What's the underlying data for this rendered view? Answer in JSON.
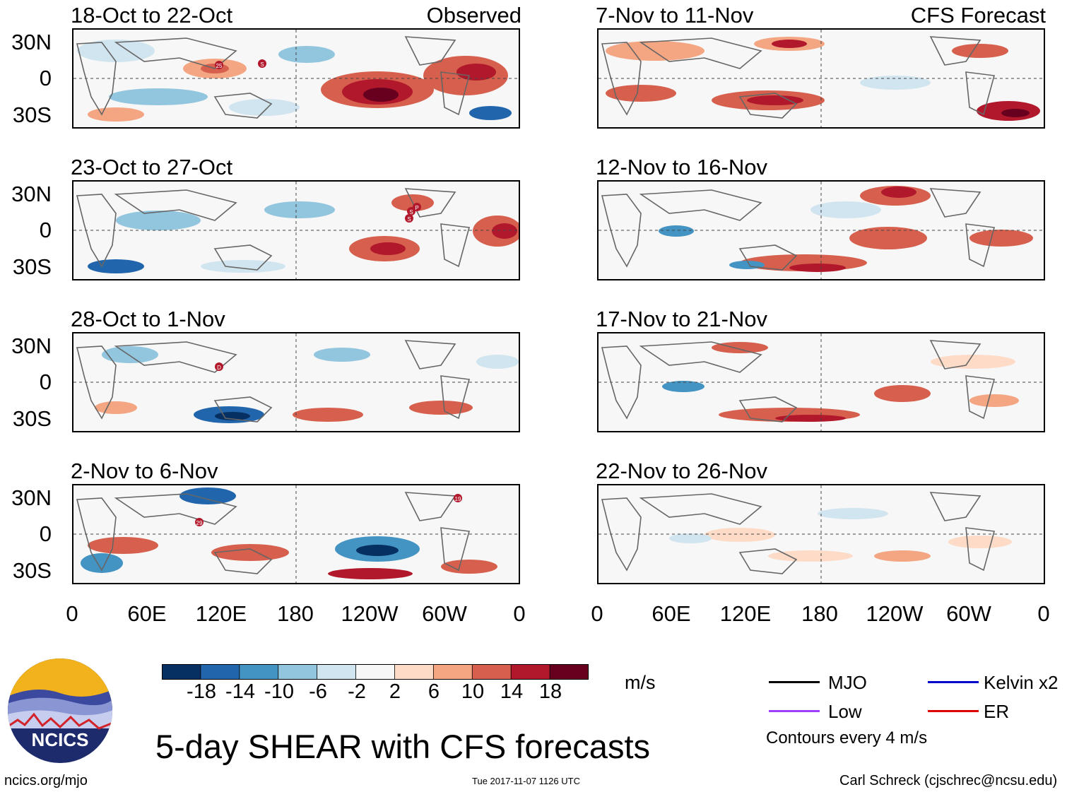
{
  "panel_titles": {
    "p1": "18-Oct to 22-Oct",
    "p2": "23-Oct to 27-Oct",
    "p3": "28-Oct to 1-Nov",
    "p4": "2-Nov to 6-Nov",
    "p5": "7-Nov to 11-Nov",
    "p6": "12-Nov to 16-Nov",
    "p7": "17-Nov to 21-Nov",
    "p8": "22-Nov to 26-Nov"
  },
  "column_labels": {
    "left": "Observed",
    "right": "CFS Forecast"
  },
  "lat_labels": [
    "30N",
    "0",
    "30S"
  ],
  "lon_labels": [
    "0",
    "60E",
    "120E",
    "180",
    "120W",
    "60W",
    "0"
  ],
  "storm_markers": {
    "p1": [
      "25",
      "S"
    ],
    "p2": [
      "S",
      "S",
      "P"
    ],
    "p3": [
      "D"
    ],
    "p4": [
      "29",
      "19"
    ]
  },
  "colorbar": {
    "labels": [
      "-18",
      "-14",
      "-10",
      "-6",
      "-2",
      "2",
      "6",
      "10",
      "14",
      "18"
    ],
    "colors": [
      "#053061",
      "#2166ac",
      "#4393c3",
      "#92c5de",
      "#d1e5f0",
      "#f7f7f7",
      "#fddbc7",
      "#f4a582",
      "#d6604d",
      "#b2182b",
      "#67001f"
    ],
    "units": "m/s"
  },
  "legend": {
    "mjo": "MJO",
    "kelvin": "Kelvin x2",
    "low": "Low",
    "er": "ER",
    "contours": "Contours every 4 m/s",
    "colors": {
      "mjo": "#000000",
      "kelvin": "#0000cc",
      "low": "#a040ff",
      "er": "#dd0000"
    }
  },
  "logo": {
    "text": "NCICS"
  },
  "main_title": "5-day SHEAR with CFS forecasts",
  "footer": {
    "url": "ncics.org/mjo",
    "timestamp": "Tue 2017-11-07 1126 UTC",
    "credit": "Carl Schreck (cjschrec@ncsu.edu)"
  }
}
